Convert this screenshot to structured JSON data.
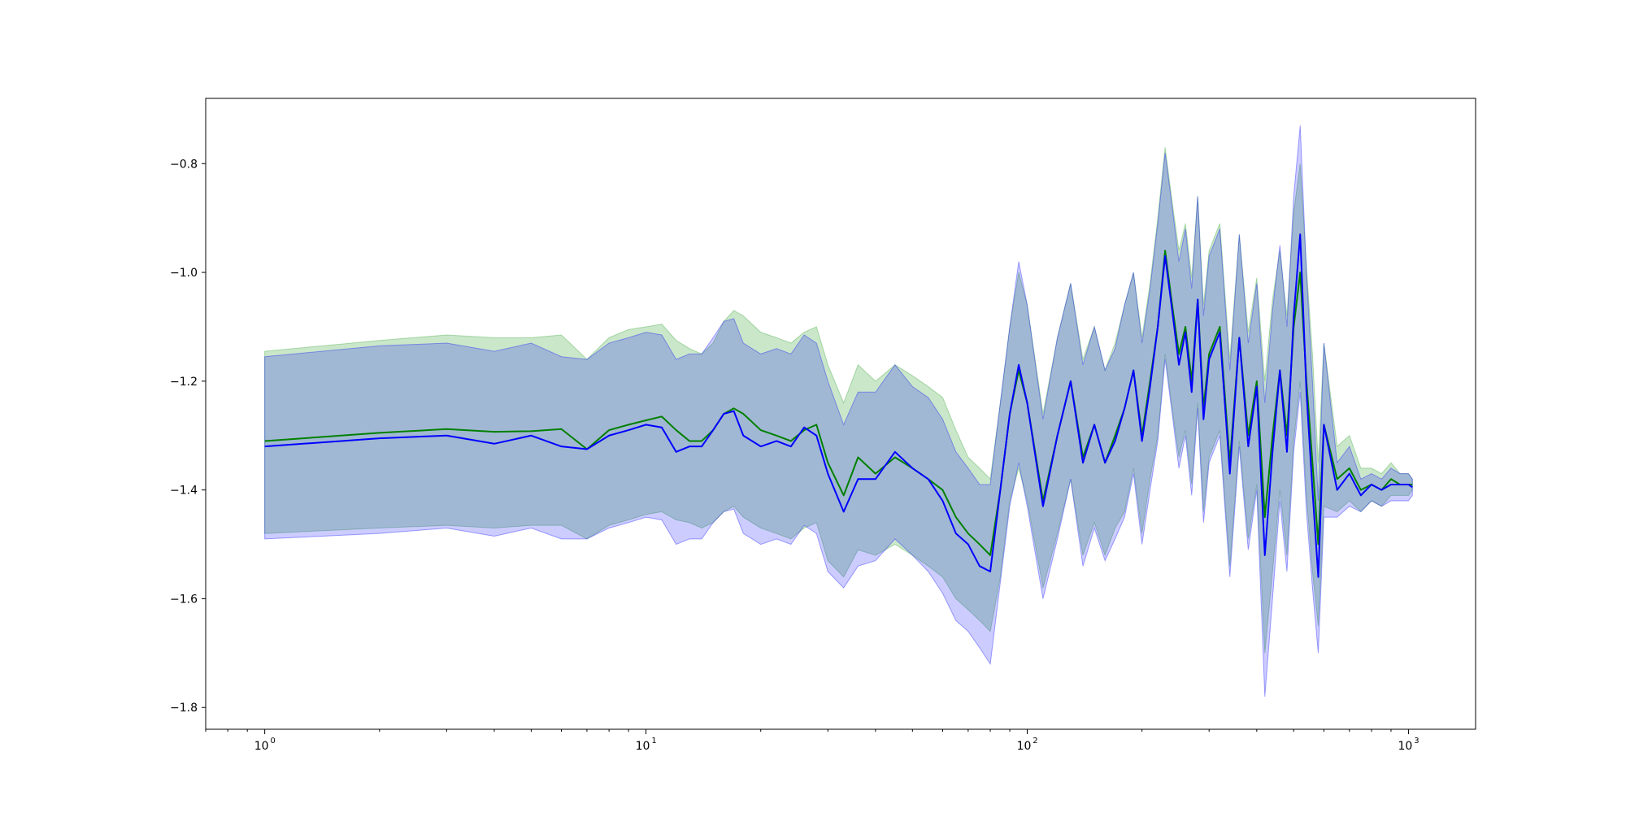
{
  "chart_data": {
    "type": "line",
    "title": "",
    "xlabel": "",
    "ylabel": "",
    "x_scale": "log",
    "xlim": [
      0.7,
      1500
    ],
    "ylim": [
      -1.84,
      -0.68
    ],
    "grid": false,
    "legend": "none",
    "x_ticks": [
      {
        "value": 1,
        "base": "10",
        "exp": "0"
      },
      {
        "value": 10,
        "base": "10",
        "exp": "1"
      },
      {
        "value": 100,
        "base": "10",
        "exp": "2"
      },
      {
        "value": 1000,
        "base": "10",
        "exp": "3"
      }
    ],
    "y_ticks": [
      {
        "value": -0.8,
        "label": "−0.8"
      },
      {
        "value": -1.0,
        "label": "−1.0"
      },
      {
        "value": -1.2,
        "label": "−1.2"
      },
      {
        "value": -1.4,
        "label": "−1.4"
      },
      {
        "value": -1.6,
        "label": "−1.6"
      },
      {
        "value": -1.8,
        "label": "−1.8"
      }
    ],
    "series": [
      {
        "color": "#008000",
        "band_color": "#2ca02c",
        "band_opacity": 0.25,
        "x": [
          1,
          2,
          3,
          4,
          5,
          6,
          7,
          8,
          9,
          10,
          11,
          12,
          13,
          14,
          15,
          16,
          17,
          18,
          20,
          22,
          24,
          26,
          28,
          30,
          33,
          36,
          40,
          45,
          50,
          55,
          60,
          65,
          70,
          75,
          80,
          85,
          90,
          95,
          100,
          110,
          120,
          130,
          140,
          150,
          160,
          170,
          180,
          190,
          200,
          210,
          220,
          230,
          240,
          250,
          260,
          270,
          280,
          290,
          300,
          320,
          340,
          360,
          380,
          400,
          420,
          440,
          460,
          480,
          500,
          520,
          540,
          560,
          580,
          600,
          650,
          700,
          750,
          800,
          850,
          900,
          950,
          1000,
          1024
        ],
        "y": [
          -1.31,
          -1.295,
          -1.288,
          -1.293,
          -1.292,
          -1.288,
          -1.325,
          -1.29,
          -1.28,
          -1.272,
          -1.265,
          -1.29,
          -1.31,
          -1.31,
          -1.29,
          -1.26,
          -1.25,
          -1.26,
          -1.29,
          -1.3,
          -1.31,
          -1.29,
          -1.28,
          -1.35,
          -1.41,
          -1.34,
          -1.37,
          -1.34,
          -1.36,
          -1.38,
          -1.4,
          -1.45,
          -1.48,
          -1.5,
          -1.52,
          -1.4,
          -1.26,
          -1.18,
          -1.24,
          -1.42,
          -1.3,
          -1.2,
          -1.34,
          -1.28,
          -1.35,
          -1.3,
          -1.25,
          -1.18,
          -1.3,
          -1.2,
          -1.1,
          -0.96,
          -1.06,
          -1.15,
          -1.1,
          -1.2,
          -1.05,
          -1.25,
          -1.15,
          -1.1,
          -1.35,
          -1.12,
          -1.3,
          -1.2,
          -1.45,
          -1.3,
          -1.18,
          -1.3,
          -1.1,
          -1.0,
          -1.2,
          -1.35,
          -1.5,
          -1.28,
          -1.38,
          -1.36,
          -1.4,
          -1.39,
          -1.4,
          -1.38,
          -1.39,
          -1.39,
          -1.39
        ],
        "lower": [
          -1.48,
          -1.47,
          -1.465,
          -1.47,
          -1.465,
          -1.465,
          -1.49,
          -1.465,
          -1.455,
          -1.445,
          -1.44,
          -1.455,
          -1.46,
          -1.47,
          -1.46,
          -1.44,
          -1.43,
          -1.45,
          -1.47,
          -1.48,
          -1.49,
          -1.47,
          -1.46,
          -1.53,
          -1.56,
          -1.51,
          -1.52,
          -1.5,
          -1.52,
          -1.54,
          -1.56,
          -1.6,
          -1.62,
          -1.64,
          -1.66,
          -1.56,
          -1.42,
          -1.36,
          -1.42,
          -1.58,
          -1.48,
          -1.38,
          -1.52,
          -1.46,
          -1.52,
          -1.47,
          -1.44,
          -1.36,
          -1.48,
          -1.38,
          -1.3,
          -1.15,
          -1.25,
          -1.34,
          -1.29,
          -1.39,
          -1.24,
          -1.44,
          -1.34,
          -1.29,
          -1.54,
          -1.31,
          -1.49,
          -1.39,
          -1.7,
          -1.55,
          -1.4,
          -1.52,
          -1.31,
          -1.2,
          -1.41,
          -1.55,
          -1.65,
          -1.43,
          -1.44,
          -1.42,
          -1.44,
          -1.42,
          -1.43,
          -1.41,
          -1.41,
          -1.41,
          -1.4
        ],
        "upper": [
          -1.145,
          -1.125,
          -1.115,
          -1.12,
          -1.12,
          -1.115,
          -1.16,
          -1.12,
          -1.105,
          -1.1,
          -1.095,
          -1.125,
          -1.14,
          -1.15,
          -1.13,
          -1.09,
          -1.07,
          -1.08,
          -1.11,
          -1.12,
          -1.13,
          -1.11,
          -1.1,
          -1.17,
          -1.24,
          -1.17,
          -1.2,
          -1.17,
          -1.19,
          -1.21,
          -1.23,
          -1.29,
          -1.34,
          -1.36,
          -1.38,
          -1.24,
          -1.1,
          -1.0,
          -1.06,
          -1.26,
          -1.12,
          -1.02,
          -1.16,
          -1.1,
          -1.18,
          -1.13,
          -1.06,
          -1.0,
          -1.12,
          -1.02,
          -0.9,
          -0.77,
          -0.87,
          -0.96,
          -0.91,
          -1.01,
          -0.86,
          -1.06,
          -0.96,
          -0.91,
          -1.16,
          -0.93,
          -1.11,
          -1.01,
          -1.2,
          -1.05,
          -0.96,
          -1.08,
          -0.89,
          -0.8,
          -0.99,
          -1.15,
          -1.35,
          -1.13,
          -1.32,
          -1.3,
          -1.36,
          -1.36,
          -1.37,
          -1.35,
          -1.37,
          -1.37,
          -1.38
        ]
      },
      {
        "color": "#0000ff",
        "band_color": "#0000ff",
        "band_opacity": 0.2,
        "x": [
          1,
          2,
          3,
          4,
          5,
          6,
          7,
          8,
          9,
          10,
          11,
          12,
          13,
          14,
          15,
          16,
          17,
          18,
          20,
          22,
          24,
          26,
          28,
          30,
          33,
          36,
          40,
          45,
          50,
          55,
          60,
          65,
          70,
          75,
          80,
          85,
          90,
          95,
          100,
          110,
          120,
          130,
          140,
          150,
          160,
          170,
          180,
          190,
          200,
          210,
          220,
          230,
          240,
          250,
          260,
          270,
          280,
          290,
          300,
          320,
          340,
          360,
          380,
          400,
          420,
          440,
          460,
          480,
          500,
          520,
          540,
          560,
          580,
          600,
          650,
          700,
          750,
          800,
          850,
          900,
          950,
          1000,
          1024
        ],
        "y": [
          -1.32,
          -1.305,
          -1.3,
          -1.315,
          -1.3,
          -1.32,
          -1.325,
          -1.3,
          -1.29,
          -1.28,
          -1.285,
          -1.33,
          -1.32,
          -1.32,
          -1.29,
          -1.26,
          -1.255,
          -1.3,
          -1.32,
          -1.31,
          -1.32,
          -1.285,
          -1.3,
          -1.37,
          -1.44,
          -1.38,
          -1.38,
          -1.33,
          -1.36,
          -1.38,
          -1.42,
          -1.48,
          -1.5,
          -1.54,
          -1.55,
          -1.4,
          -1.26,
          -1.17,
          -1.24,
          -1.43,
          -1.3,
          -1.2,
          -1.35,
          -1.28,
          -1.35,
          -1.31,
          -1.25,
          -1.18,
          -1.31,
          -1.21,
          -1.1,
          -0.97,
          -1.07,
          -1.17,
          -1.11,
          -1.22,
          -1.05,
          -1.27,
          -1.16,
          -1.11,
          -1.37,
          -1.12,
          -1.32,
          -1.21,
          -1.52,
          -1.33,
          -1.18,
          -1.33,
          -1.08,
          -0.93,
          -1.22,
          -1.4,
          -1.56,
          -1.28,
          -1.4,
          -1.37,
          -1.41,
          -1.39,
          -1.4,
          -1.39,
          -1.39,
          -1.39,
          -1.395
        ],
        "lower": [
          -1.49,
          -1.48,
          -1.47,
          -1.485,
          -1.47,
          -1.49,
          -1.49,
          -1.47,
          -1.46,
          -1.45,
          -1.455,
          -1.5,
          -1.49,
          -1.49,
          -1.46,
          -1.44,
          -1.435,
          -1.48,
          -1.5,
          -1.49,
          -1.5,
          -1.465,
          -1.48,
          -1.55,
          -1.58,
          -1.54,
          -1.53,
          -1.49,
          -1.52,
          -1.55,
          -1.59,
          -1.64,
          -1.66,
          -1.69,
          -1.72,
          -1.57,
          -1.43,
          -1.35,
          -1.43,
          -1.6,
          -1.49,
          -1.38,
          -1.54,
          -1.47,
          -1.53,
          -1.49,
          -1.45,
          -1.37,
          -1.5,
          -1.4,
          -1.31,
          -1.16,
          -1.26,
          -1.36,
          -1.3,
          -1.41,
          -1.25,
          -1.46,
          -1.35,
          -1.3,
          -1.56,
          -1.32,
          -1.51,
          -1.4,
          -1.78,
          -1.6,
          -1.42,
          -1.55,
          -1.33,
          -1.22,
          -1.44,
          -1.58,
          -1.7,
          -1.45,
          -1.45,
          -1.43,
          -1.44,
          -1.42,
          -1.43,
          -1.42,
          -1.42,
          -1.42,
          -1.41
        ],
        "upper": [
          -1.155,
          -1.135,
          -1.13,
          -1.145,
          -1.13,
          -1.155,
          -1.16,
          -1.13,
          -1.12,
          -1.11,
          -1.115,
          -1.16,
          -1.15,
          -1.15,
          -1.12,
          -1.09,
          -1.085,
          -1.13,
          -1.15,
          -1.14,
          -1.15,
          -1.115,
          -1.13,
          -1.2,
          -1.28,
          -1.22,
          -1.22,
          -1.17,
          -1.21,
          -1.23,
          -1.27,
          -1.33,
          -1.36,
          -1.39,
          -1.39,
          -1.24,
          -1.1,
          -0.98,
          -1.06,
          -1.27,
          -1.12,
          -1.02,
          -1.17,
          -1.1,
          -1.18,
          -1.14,
          -1.06,
          -1.0,
          -1.13,
          -1.03,
          -0.91,
          -0.78,
          -0.88,
          -0.98,
          -0.92,
          -1.03,
          -0.86,
          -1.08,
          -0.97,
          -0.92,
          -1.18,
          -0.93,
          -1.13,
          -1.02,
          -1.24,
          -1.07,
          -0.95,
          -1.1,
          -0.86,
          -0.73,
          -1.0,
          -1.2,
          -1.42,
          -1.13,
          -1.35,
          -1.32,
          -1.38,
          -1.37,
          -1.38,
          -1.36,
          -1.37,
          -1.37,
          -1.38
        ]
      }
    ]
  }
}
